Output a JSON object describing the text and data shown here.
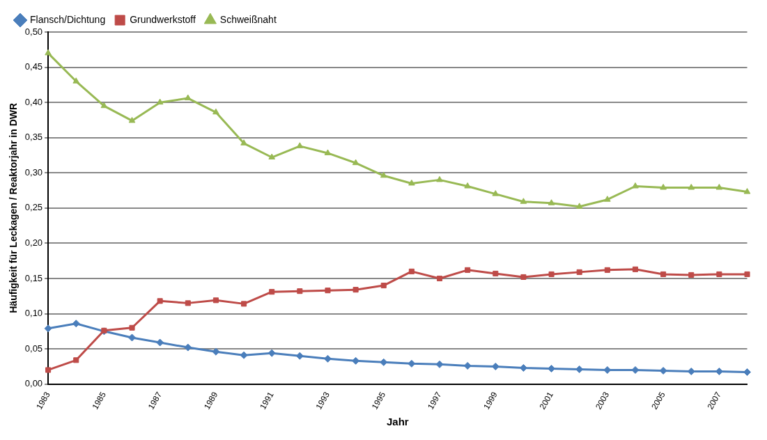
{
  "chart_data": {
    "type": "line",
    "xlabel": "Jahr",
    "ylabel": "Häufigkeit für Leckagen / Reaktorjahr in DWR",
    "categories": [
      "1983",
      null,
      "1985",
      null,
      "1987",
      null,
      "1989",
      null,
      "1991",
      null,
      "1993",
      null,
      "1995",
      null,
      "1997",
      null,
      "1999",
      null,
      "2001",
      null,
      "2003",
      null,
      "2005",
      null,
      "2007",
      null
    ],
    "series": [
      {
        "name": "Flansch/Dichtung",
        "color": "#4a7ebb",
        "marker": "diamond",
        "values": [
          0.079,
          0.086,
          0.075,
          0.066,
          0.059,
          0.052,
          0.046,
          0.041,
          0.044,
          0.04,
          0.036,
          0.033,
          0.031,
          0.029,
          0.028,
          0.026,
          0.025,
          0.023,
          0.022,
          0.021,
          0.02,
          0.02,
          0.019,
          0.018,
          0.018,
          0.017
        ]
      },
      {
        "name": "Grundwerkstoff",
        "color": "#be4b48",
        "marker": "square",
        "values": [
          0.02,
          0.034,
          0.076,
          0.08,
          0.118,
          0.115,
          0.119,
          0.114,
          0.131,
          0.132,
          0.133,
          0.134,
          0.14,
          0.16,
          0.15,
          0.162,
          0.157,
          0.152,
          0.156,
          0.159,
          0.162,
          0.163,
          0.156,
          0.155,
          0.156,
          0.156
        ]
      },
      {
        "name": "Schweißnaht",
        "color": "#98b954",
        "marker": "triangle",
        "values": [
          0.47,
          0.43,
          0.395,
          0.374,
          0.4,
          0.406,
          0.386,
          0.342,
          0.322,
          0.338,
          0.328,
          0.314,
          0.296,
          0.285,
          0.29,
          0.281,
          0.27,
          0.259,
          0.257,
          0.252,
          0.262,
          0.281,
          0.279,
          0.279,
          0.279,
          0.273
        ]
      }
    ],
    "ylim": [
      0,
      0.5
    ],
    "yticks": [
      {
        "value": 0,
        "label": "0,00"
      },
      {
        "value": 0.05,
        "label": "0,05"
      },
      {
        "value": 0.1,
        "label": "0,10"
      },
      {
        "value": 0.15,
        "label": "0,15"
      },
      {
        "value": 0.2,
        "label": "0,20"
      },
      {
        "value": 0.25,
        "label": "0,25"
      },
      {
        "value": 0.3,
        "label": "0,30"
      },
      {
        "value": 0.35,
        "label": "0,35"
      },
      {
        "value": 0.4,
        "label": "0,40"
      },
      {
        "value": 0.45,
        "label": "0,45"
      },
      {
        "value": 0.5,
        "label": "0,50"
      }
    ],
    "grid": "y",
    "legend": "top left",
    "line_style": "solid"
  }
}
